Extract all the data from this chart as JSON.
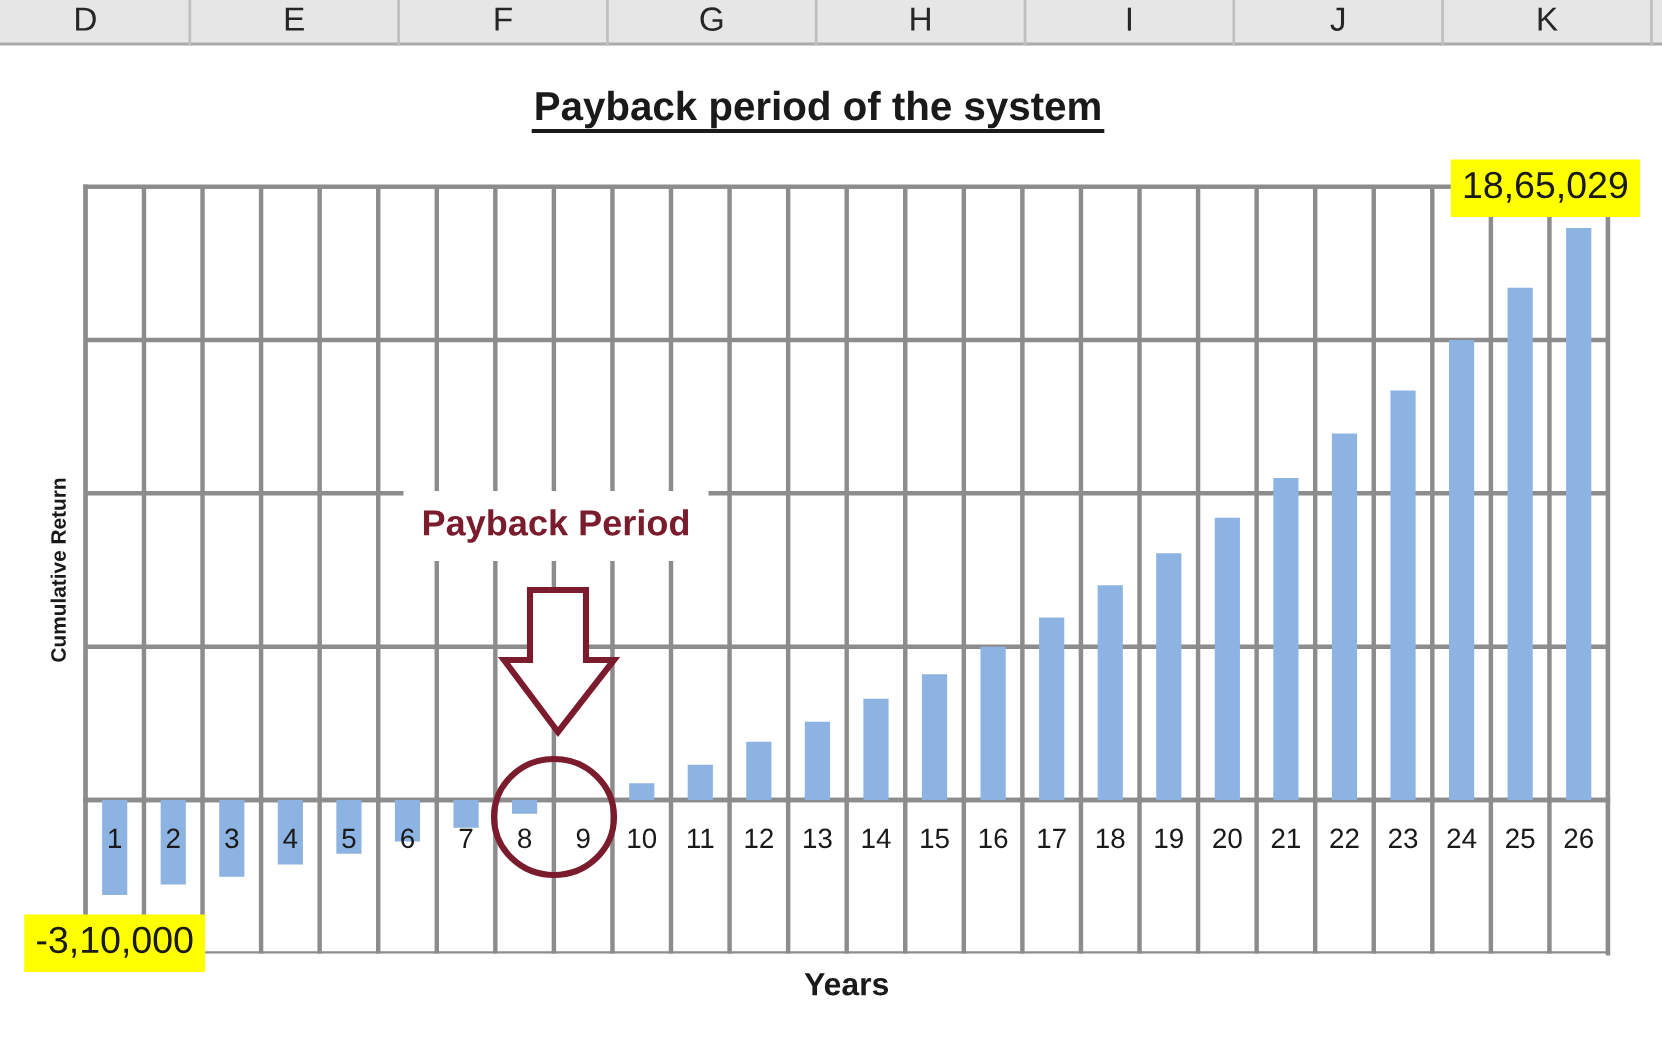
{
  "chart_data": {
    "type": "bar",
    "title": "Payback period of the system",
    "xlabel": "Years",
    "ylabel": "Cumulative Return",
    "categories": [
      "1",
      "2",
      "3",
      "4",
      "5",
      "6",
      "7",
      "8",
      "9",
      "10",
      "11",
      "12",
      "13",
      "14",
      "15",
      "16",
      "17",
      "18",
      "19",
      "20",
      "21",
      "22",
      "23",
      "24",
      "25",
      "26"
    ],
    "values": [
      -310000,
      -275000,
      -250000,
      -210000,
      -175000,
      -135000,
      -90000,
      -45000,
      0,
      55000,
      115000,
      190000,
      255000,
      330000,
      410000,
      500000,
      595000,
      700000,
      805000,
      920000,
      1050000,
      1195000,
      1335000,
      1500000,
      1670000,
      1865029
    ],
    "value_labels": [
      "-3,10,000",
      null,
      null,
      null,
      null,
      null,
      null,
      null,
      null,
      null,
      null,
      null,
      null,
      null,
      null,
      null,
      null,
      null,
      null,
      null,
      null,
      null,
      null,
      null,
      null,
      "18,65,029"
    ],
    "color": "#8db3e2",
    "ylim": [
      -500000,
      2000000
    ],
    "yticks": [
      {
        "value": -500000,
        "label": null
      },
      {
        "value": 0,
        "label": null
      },
      {
        "value": 500000,
        "label": null
      },
      {
        "value": 1000000,
        "label": null
      },
      {
        "value": 1500000,
        "label": null
      },
      {
        "value": 2000000,
        "label": null
      }
    ],
    "tick_labels": "x",
    "grid": true,
    "annotations": [
      "D",
      "E",
      "F",
      "G",
      "H",
      "I",
      "J",
      "K",
      "Payback Period"
    ]
  }
}
